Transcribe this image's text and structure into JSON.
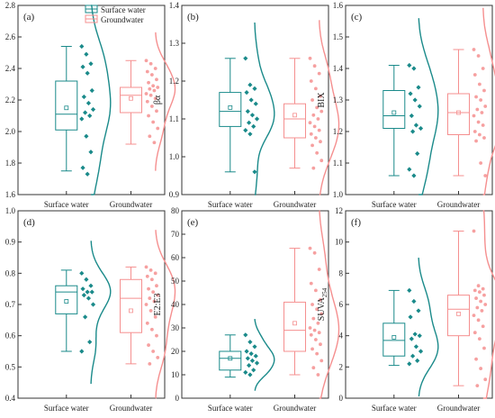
{
  "colors": {
    "surface": "#1a8a8a",
    "ground": "#f58f8f",
    "axis": "#333333"
  },
  "legend": {
    "surface_label": "Surface water",
    "ground_label": "Groundwater"
  },
  "chart_data": [
    {
      "type": "box",
      "panel_label": "(a)",
      "ylabel": "FI",
      "ylim": [
        1.6,
        2.8
      ],
      "yticks": [
        "1.6",
        "1.8",
        "2.0",
        "2.2",
        "2.4",
        "2.6",
        "2.8"
      ],
      "categories": [
        "Surface water",
        "Groundwater"
      ],
      "series": [
        {
          "name": "Surface water",
          "whisker_low": 1.75,
          "q1": 2.01,
          "median": 2.11,
          "q3": 2.32,
          "whisker_high": 2.54,
          "mean": 2.15,
          "points": [
            2.54,
            2.49,
            2.43,
            2.41,
            2.37,
            2.26,
            2.22,
            2.18,
            2.14,
            2.12,
            2.1,
            2.08,
            1.97,
            1.87,
            1.77,
            1.73
          ]
        },
        {
          "name": "Groundwater",
          "whisker_low": 1.92,
          "q1": 2.12,
          "median": 2.23,
          "q3": 2.28,
          "whisker_high": 2.45,
          "mean": 2.21,
          "points": [
            2.45,
            2.43,
            2.4,
            2.38,
            2.36,
            2.33,
            2.31,
            2.29,
            2.28,
            2.27,
            2.26,
            2.24,
            2.23,
            2.21,
            2.19,
            2.16,
            2.13,
            2.1,
            2.06,
            2.02,
            1.97,
            1.93
          ]
        }
      ]
    },
    {
      "type": "box",
      "panel_label": "(b)",
      "ylabel": "βα",
      "ylim": [
        0.9,
        1.4
      ],
      "yticks": [
        "0.9",
        "1.0",
        "1.1",
        "1.2",
        "1.3",
        "1.4"
      ],
      "categories": [
        "Surface water",
        "Groundwater"
      ],
      "series": [
        {
          "name": "Surface water",
          "whisker_low": 0.96,
          "q1": 1.08,
          "median": 1.12,
          "q3": 1.17,
          "whisker_high": 1.26,
          "mean": 1.13,
          "points": [
            1.26,
            1.19,
            1.18,
            1.17,
            1.15,
            1.14,
            1.12,
            1.11,
            1.1,
            1.09,
            1.08,
            1.07,
            1.06,
            0.96
          ]
        },
        {
          "name": "Groundwater",
          "whisker_low": 0.97,
          "q1": 1.05,
          "median": 1.1,
          "q3": 1.14,
          "whisker_high": 1.26,
          "mean": 1.11,
          "points": [
            1.26,
            1.24,
            1.22,
            1.2,
            1.18,
            1.16,
            1.15,
            1.13,
            1.12,
            1.11,
            1.1,
            1.09,
            1.08,
            1.07,
            1.06,
            1.05,
            1.04,
            1.03,
            1.01,
            0.99,
            0.97
          ]
        }
      ]
    },
    {
      "type": "box",
      "panel_label": "(c)",
      "ylabel": "BIX",
      "ylim": [
        1.0,
        1.6
      ],
      "yticks": [
        "1.0",
        "1.1",
        "1.2",
        "1.3",
        "1.4",
        "1.5",
        "1.6"
      ],
      "categories": [
        "Surface water",
        "Groundwater"
      ],
      "series": [
        {
          "name": "Surface water",
          "whisker_low": 1.06,
          "q1": 1.21,
          "median": 1.25,
          "q3": 1.33,
          "whisker_high": 1.41,
          "mean": 1.26,
          "points": [
            1.41,
            1.4,
            1.34,
            1.32,
            1.3,
            1.28,
            1.25,
            1.22,
            1.21,
            1.2,
            1.13,
            1.08,
            1.06
          ]
        },
        {
          "name": "Groundwater",
          "whisker_low": 1.06,
          "q1": 1.19,
          "median": 1.26,
          "q3": 1.32,
          "whisker_high": 1.46,
          "mean": 1.26,
          "points": [
            1.46,
            1.44,
            1.4,
            1.38,
            1.35,
            1.33,
            1.31,
            1.3,
            1.28,
            1.27,
            1.26,
            1.25,
            1.23,
            1.22,
            1.2,
            1.19,
            1.18,
            1.17,
            1.1,
            1.06
          ]
        }
      ]
    },
    {
      "type": "box",
      "panel_label": "(d)",
      "ylabel": "HIX",
      "ylim": [
        0.4,
        1.0
      ],
      "yticks": [
        "0.4",
        "0.5",
        "0.6",
        "0.7",
        "0.8",
        "0.9",
        "1.0"
      ],
      "categories": [
        "Surface water",
        "Groundwater"
      ],
      "series": [
        {
          "name": "Surface water",
          "whisker_low": 0.55,
          "q1": 0.67,
          "median": 0.74,
          "q3": 0.76,
          "whisker_high": 0.81,
          "mean": 0.71,
          "points": [
            0.8,
            0.78,
            0.76,
            0.75,
            0.74,
            0.74,
            0.73,
            0.72,
            0.7,
            0.66,
            0.58,
            0.55
          ]
        },
        {
          "name": "Groundwater",
          "whisker_low": 0.51,
          "q1": 0.61,
          "median": 0.72,
          "q3": 0.78,
          "whisker_high": 0.82,
          "mean": 0.68,
          "points": [
            0.82,
            0.81,
            0.8,
            0.79,
            0.78,
            0.76,
            0.75,
            0.74,
            0.73,
            0.72,
            0.71,
            0.7,
            0.68,
            0.66,
            0.64,
            0.62,
            0.6,
            0.57,
            0.55,
            0.53,
            0.51
          ]
        }
      ]
    },
    {
      "type": "box",
      "panel_label": "(e)",
      "ylabel": "E2:E3",
      "ylim": [
        0,
        80
      ],
      "yticks": [
        "0",
        "10",
        "20",
        "30",
        "40",
        "50",
        "60",
        "70",
        "80"
      ],
      "categories": [
        "Surface water",
        "Groundwater"
      ],
      "series": [
        {
          "name": "Surface water",
          "whisker_low": 9,
          "q1": 12,
          "median": 17,
          "q3": 20,
          "whisker_high": 27,
          "mean": 17,
          "points": [
            27,
            24,
            22,
            20,
            19,
            18,
            17,
            16,
            15,
            14,
            12,
            11,
            10
          ]
        },
        {
          "name": "Groundwater",
          "whisker_low": 10,
          "q1": 20,
          "median": 29,
          "q3": 41,
          "whisker_high": 64,
          "mean": 32,
          "points": [
            64,
            62,
            55,
            49,
            46,
            42,
            40,
            38,
            36,
            34,
            32,
            30,
            29,
            28,
            27,
            25,
            23,
            21,
            19,
            16,
            13,
            10
          ]
        }
      ]
    },
    {
      "type": "box",
      "panel_label": "(f)",
      "ylabel": "SUVA",
      "ylabel_sub": "254",
      "ylim": [
        0,
        12
      ],
      "yticks": [
        "0",
        "2",
        "4",
        "6",
        "8",
        "10",
        "12"
      ],
      "categories": [
        "Surface water",
        "Groundwater"
      ],
      "series": [
        {
          "name": "Surface water",
          "whisker_low": 2.1,
          "q1": 2.7,
          "median": 3.7,
          "q3": 4.8,
          "whisker_high": 6.9,
          "mean": 3.9,
          "points": [
            6.9,
            6.2,
            5.6,
            5.2,
            4.1,
            4.0,
            3.8,
            3.3,
            3.0,
            2.7,
            2.4,
            2.2
          ]
        },
        {
          "name": "Groundwater",
          "whisker_low": 0.8,
          "q1": 4.0,
          "median": 5.7,
          "q3": 6.6,
          "whisker_high": 10.7,
          "mean": 5.4,
          "points": [
            10.7,
            7.2,
            7.0,
            6.9,
            6.8,
            6.6,
            6.4,
            6.2,
            6.0,
            5.8,
            5.6,
            5.3,
            5.0,
            4.6,
            4.2,
            3.8,
            3.2,
            2.5,
            1.9,
            1.2,
            0.8
          ]
        }
      ]
    }
  ]
}
